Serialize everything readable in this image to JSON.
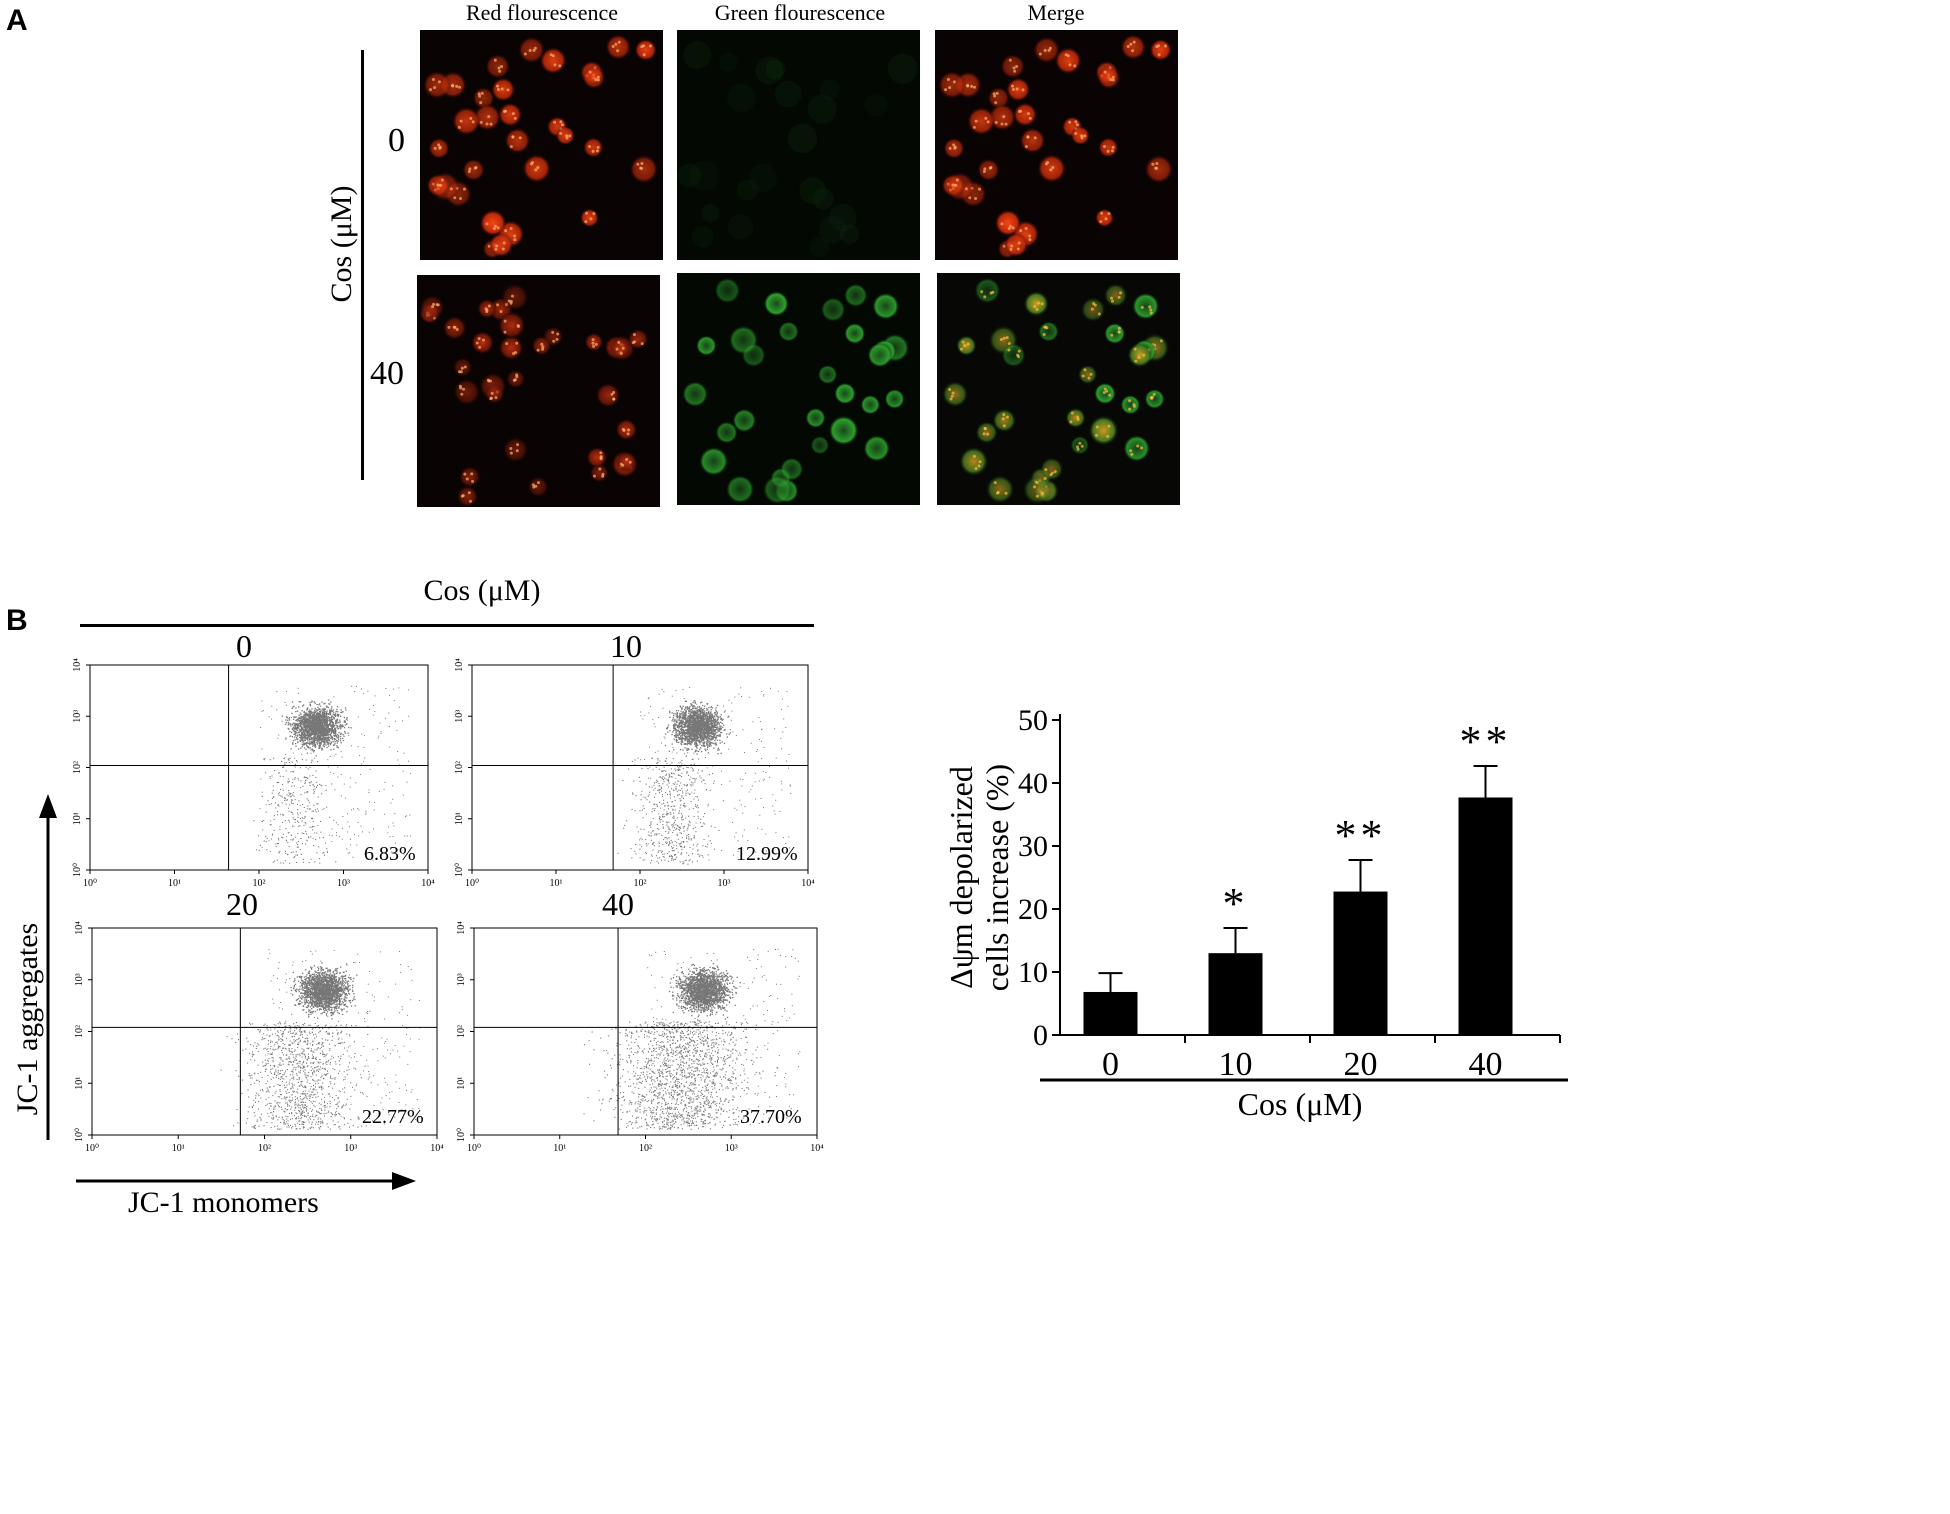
{
  "panels": {
    "a": "A",
    "b": "B"
  },
  "panel_a": {
    "columns": [
      "Red flourescence",
      "Green flourescence",
      "Merge"
    ],
    "row_axis_label": "Cos (μM)",
    "rows": [
      "0",
      "40"
    ]
  },
  "panel_b": {
    "header": "Cos (μM)",
    "x_axis_label": "JC-1 monomers",
    "y_axis_label": "JC-1 aggregates",
    "plots": [
      {
        "dose": "0",
        "percent": "6.83%"
      },
      {
        "dose": "10",
        "percent": "12.99%"
      },
      {
        "dose": "20",
        "percent": "22.77%"
      },
      {
        "dose": "40",
        "percent": "37.70%"
      }
    ],
    "tick_labels": [
      "10⁰",
      "10¹",
      "10²",
      "10³",
      "10⁴"
    ]
  },
  "chart_data": {
    "type": "bar",
    "categories": [
      "0",
      "10",
      "20",
      "40"
    ],
    "values": [
      6.83,
      12.99,
      22.77,
      37.7
    ],
    "errors": [
      3,
      4,
      5,
      5
    ],
    "significance": [
      "",
      "*",
      "**",
      "**"
    ],
    "ylim": [
      0,
      50
    ],
    "yticks": [
      0,
      10,
      20,
      30,
      40,
      50
    ],
    "ylabel_line1": "Δψm depolarized",
    "ylabel_line2": "cells increase (%)",
    "xlabel": "Cos (μM)",
    "bar_color": "#000000"
  }
}
